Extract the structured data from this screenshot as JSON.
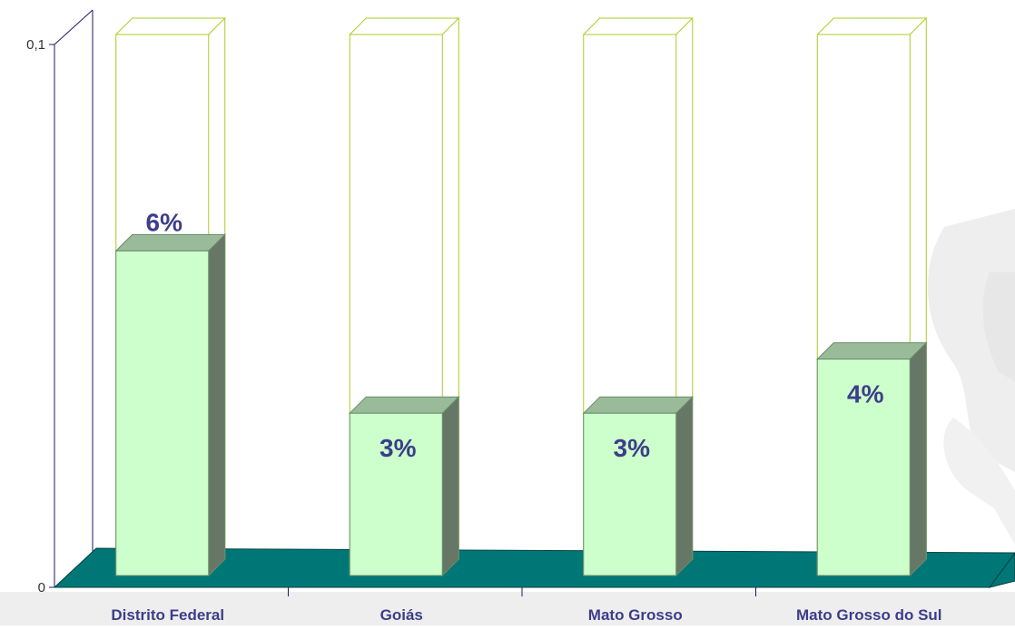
{
  "chart_data": {
    "type": "bar",
    "categories": [
      "Distrito Federal",
      "Goiás",
      "Mato Grosso",
      "Mato Grosso do Sul"
    ],
    "values": [
      0.06,
      0.03,
      0.03,
      0.04
    ],
    "data_labels": [
      "6%",
      "3%",
      "3%",
      "4%"
    ],
    "y_ticks": [
      {
        "value": 0,
        "label": "0"
      },
      {
        "value": 0.1,
        "label": "0,1"
      }
    ],
    "ylim": [
      0,
      0.1
    ],
    "title": "",
    "xlabel": "",
    "ylabel": "",
    "grid": false,
    "legend": "none",
    "three_d": true,
    "colors": {
      "bar_front": "#ccffcc",
      "bar_top": "#99bb99",
      "bar_side": "#667766",
      "bar_edge": "#6a8a6a",
      "capacity_outline": "#aacc22",
      "floor": "#007777",
      "floor_edge": "#003f3f",
      "axis": "#1a1a6e",
      "label": "#3d3d8a"
    }
  }
}
